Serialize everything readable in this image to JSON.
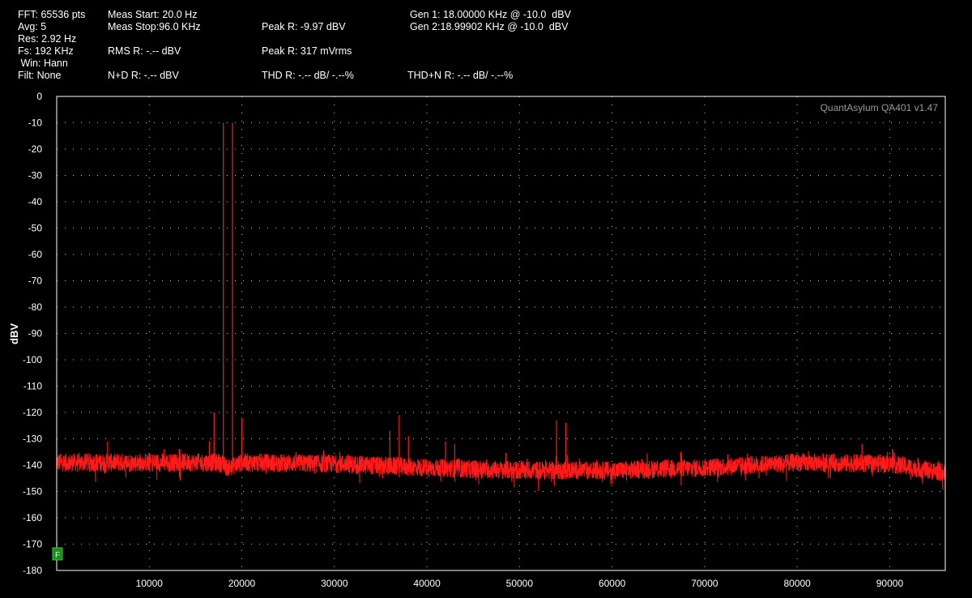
{
  "header": {
    "col1": [
      "FFT: 65536 pts",
      "Avg: 5",
      "Res: 2.92 Hz",
      "Fs: 192 KHz",
      " Win: Hann",
      "Filt: None"
    ],
    "meas_start": "Meas Start: 20.0 Hz",
    "meas_stop": "Meas Stop:96.0 KHz",
    "rms": "RMS R: -.-- dBV",
    "nd": "N+D R: -.-- dBV",
    "peak_dbv": "Peak R: -9.97 dBV",
    "peak_mv": "Peak R: 317 mVrms",
    "thd": "THD R: -.-- dB/ -.--%",
    "gen1": "Gen 1: 18.00000 KHz @ -10.0  dBV",
    "gen2": "Gen 2:18.99902 KHz @ -10.0  dBV",
    "thdn": "THD+N R: -.-- dB/ -.--%"
  },
  "watermark": "QuantAsylum QA401 v1.47",
  "marker_label": "F",
  "colors": {
    "trace": "#ff1a1a",
    "grid": "#c8c8c8",
    "frame": "#ffffff",
    "marker": "#1f8a1f"
  },
  "chart_data": {
    "type": "line",
    "title": "",
    "xlabel": "",
    "ylabel": "dBV",
    "xlim": [
      0,
      96000
    ],
    "ylim": [
      -180,
      0
    ],
    "x_ticks": [
      10000,
      20000,
      30000,
      40000,
      50000,
      60000,
      70000,
      80000,
      90000
    ],
    "y_ticks": [
      0,
      -10,
      -20,
      -30,
      -40,
      -50,
      -60,
      -70,
      -80,
      -90,
      -100,
      -110,
      -120,
      -130,
      -140,
      -150,
      -160,
      -170,
      -180
    ],
    "grid": true,
    "series": [
      {
        "noise_floor": [
          [
            20,
            -139
          ],
          [
            10000,
            -139
          ],
          [
            17500,
            -139
          ],
          [
            18500,
            -141
          ],
          [
            20000,
            -139
          ],
          [
            30000,
            -139.5
          ],
          [
            40000,
            -141
          ],
          [
            50000,
            -142
          ],
          [
            60000,
            -142
          ],
          [
            70000,
            -141
          ],
          [
            80000,
            -139
          ],
          [
            90000,
            -139.5
          ],
          [
            96000,
            -143
          ]
        ],
        "peaks": [
          {
            "x": 18000,
            "y": -10
          },
          {
            "x": 18999,
            "y": -10
          },
          {
            "x": 17000,
            "y": -120
          },
          {
            "x": 20000,
            "y": -122
          },
          {
            "x": 16500,
            "y": -131
          },
          {
            "x": 36000,
            "y": -127
          },
          {
            "x": 37000,
            "y": -121
          },
          {
            "x": 38000,
            "y": -129
          },
          {
            "x": 42000,
            "y": -131
          },
          {
            "x": 43000,
            "y": -132
          },
          {
            "x": 54000,
            "y": -123
          },
          {
            "x": 55000,
            "y": -124
          },
          {
            "x": 5500,
            "y": -131
          },
          {
            "x": 72500,
            "y": -136
          },
          {
            "x": 87000,
            "y": -132
          },
          {
            "x": 89000,
            "y": -136
          }
        ]
      }
    ]
  }
}
